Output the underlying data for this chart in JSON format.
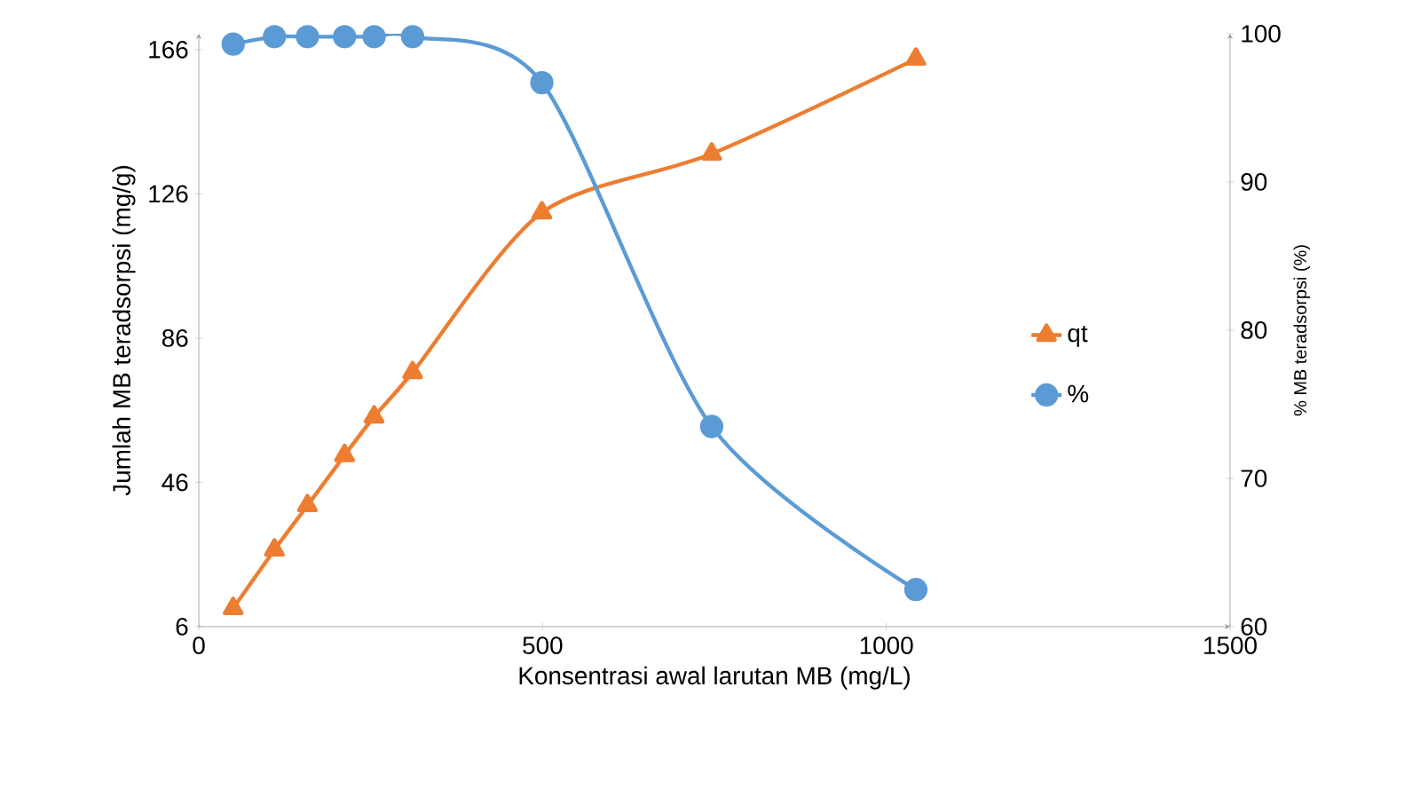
{
  "chart_data": {
    "type": "line",
    "xlabel": "Konsentrasi awal larutan MB (mg/L)",
    "ylabel": "Jumlah MB teradsorpsi (mg/g)",
    "y2label": "% MB teradsorpsi (%)",
    "x": [
      50,
      110,
      158,
      212,
      255,
      311,
      499,
      746,
      1043
    ],
    "xlim": [
      0,
      1500
    ],
    "xticks": [
      0,
      500,
      1000,
      1500
    ],
    "ylim": [
      6,
      170.4
    ],
    "yticks": [
      6,
      46,
      86,
      126,
      166
    ],
    "y2lim": [
      60,
      100
    ],
    "y2ticks": [
      60,
      70,
      80,
      90,
      100
    ],
    "series": [
      {
        "name": "qt",
        "color": "#ed7d31",
        "marker": "triangle",
        "values": [
          11.1,
          27.3,
          39.6,
          53.5,
          64.2,
          76.5,
          120.8,
          137.1,
          163.4
        ]
      },
      {
        "name": "%",
        "color": "#5b9bd5",
        "marker": "circle",
        "axis": "y2",
        "values": [
          99.3,
          99.8,
          99.8,
          99.8,
          99.8,
          99.8,
          96.7,
          73.5,
          62.5
        ]
      }
    ],
    "grid": false,
    "legend": "right"
  }
}
